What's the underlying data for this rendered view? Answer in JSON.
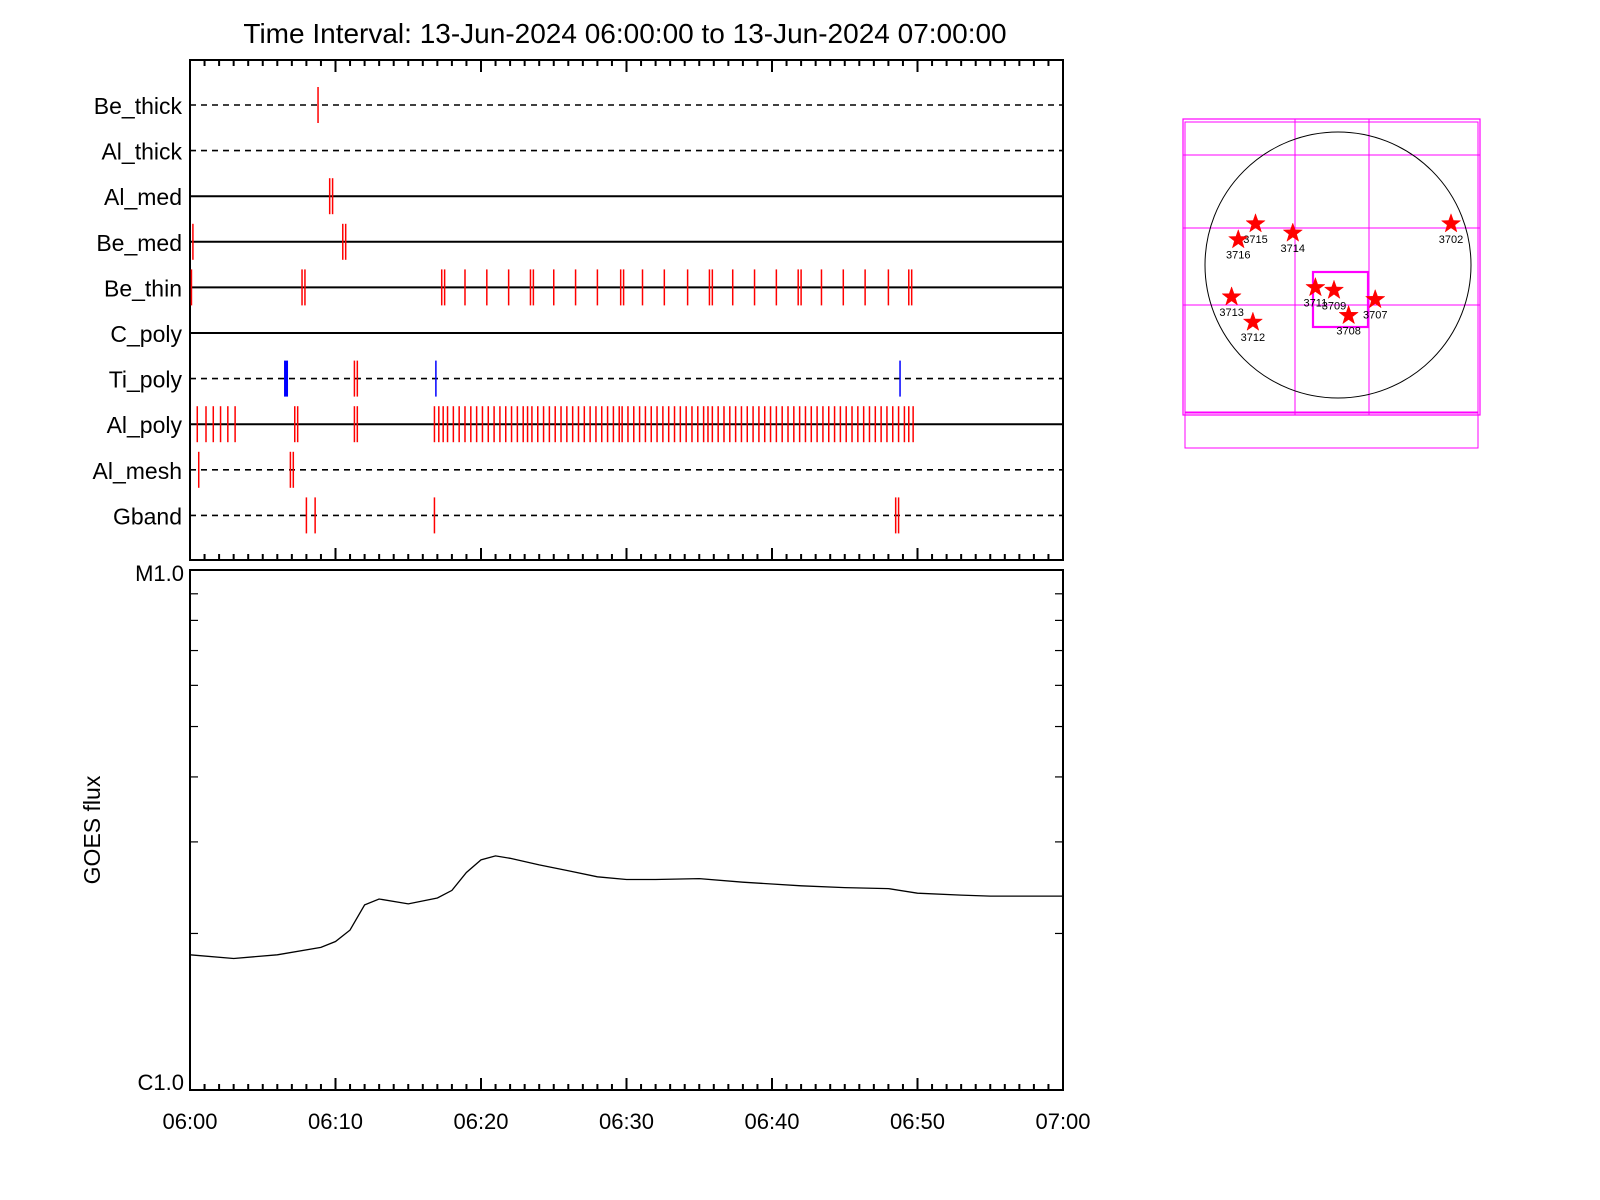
{
  "chart_data": [
    {
      "type": "event-timeline",
      "title": "Time Interval: 13-Jun-2024 06:00:00 to 13-Jun-2024 07:00:00",
      "x_range": [
        "06:00",
        "07:00"
      ],
      "rows": [
        {
          "name": "Be_thick",
          "style": "dashed",
          "events": [
            {
              "t": "06:08.8",
              "color": "red"
            }
          ]
        },
        {
          "name": "Al_thick",
          "style": "dashed",
          "events": []
        },
        {
          "name": "Al_med",
          "style": "solid",
          "events": [
            {
              "t": "06:09.6",
              "color": "red"
            },
            {
              "t": "06:09.8",
              "color": "red"
            }
          ]
        },
        {
          "name": "Be_med",
          "style": "solid",
          "events": [
            {
              "t": "06:00.2",
              "color": "red"
            },
            {
              "t": "06:10.5",
              "color": "red"
            },
            {
              "t": "06:10.7",
              "color": "red"
            }
          ]
        },
        {
          "name": "Be_thin",
          "style": "solid",
          "events": [
            {
              "t": "06:00.1",
              "color": "red"
            },
            {
              "t": "06:07.7",
              "color": "red"
            },
            {
              "t": "06:07.9",
              "color": "red"
            },
            {
              "t": "06:17.3",
              "color": "red"
            },
            {
              "t": "06:17.5",
              "color": "red"
            },
            {
              "t": "06:18.9",
              "color": "red"
            },
            {
              "t": "06:20.4",
              "color": "red"
            },
            {
              "t": "06:21.9",
              "color": "red"
            },
            {
              "t": "06:23.4",
              "color": "red"
            },
            {
              "t": "06:23.6",
              "color": "red"
            },
            {
              "t": "06:25.0",
              "color": "red"
            },
            {
              "t": "06:26.5",
              "color": "red"
            },
            {
              "t": "06:28.0",
              "color": "red"
            },
            {
              "t": "06:29.6",
              "color": "red"
            },
            {
              "t": "06:29.8",
              "color": "red"
            },
            {
              "t": "06:31.1",
              "color": "red"
            },
            {
              "t": "06:32.6",
              "color": "red"
            },
            {
              "t": "06:34.2",
              "color": "red"
            },
            {
              "t": "06:35.7",
              "color": "red"
            },
            {
              "t": "06:35.9",
              "color": "red"
            },
            {
              "t": "06:37.3",
              "color": "red"
            },
            {
              "t": "06:38.8",
              "color": "red"
            },
            {
              "t": "06:40.3",
              "color": "red"
            },
            {
              "t": "06:41.8",
              "color": "red"
            },
            {
              "t": "06:42.0",
              "color": "red"
            },
            {
              "t": "06:43.4",
              "color": "red"
            },
            {
              "t": "06:44.9",
              "color": "red"
            },
            {
              "t": "06:46.4",
              "color": "red"
            },
            {
              "t": "06:48.0",
              "color": "red"
            },
            {
              "t": "06:49.4",
              "color": "red"
            },
            {
              "t": "06:49.6",
              "color": "red"
            }
          ]
        },
        {
          "name": "C_poly",
          "style": "solid",
          "events": []
        },
        {
          "name": "Ti_poly",
          "style": "dashed",
          "events": [
            {
              "t": "06:06.6",
              "color": "blue",
              "bold": true
            },
            {
              "t": "06:11.3",
              "color": "red"
            },
            {
              "t": "06:11.5",
              "color": "red"
            },
            {
              "t": "06:16.9",
              "color": "blue"
            },
            {
              "t": "06:48.8",
              "color": "blue"
            }
          ]
        },
        {
          "name": "Al_poly",
          "style": "solid",
          "events": [
            {
              "t": "06:00.5",
              "color": "red"
            },
            {
              "t": "06:01.1",
              "color": "red"
            },
            {
              "t": "06:01.6",
              "color": "red"
            },
            {
              "t": "06:02.1",
              "color": "red"
            },
            {
              "t": "06:02.6",
              "color": "red"
            },
            {
              "t": "06:03.1",
              "color": "red"
            },
            {
              "t": "06:07.2",
              "color": "red"
            },
            {
              "t": "06:07.4",
              "color": "red"
            },
            {
              "t": "06:11.3",
              "color": "red"
            },
            {
              "t": "06:11.5",
              "color": "red"
            },
            {
              "t": "06:16.8",
              "color": "red"
            },
            {
              "t": "06:17.1",
              "color": "red"
            },
            {
              "t": "06:17.4",
              "color": "red"
            },
            {
              "t": "06:17.7",
              "color": "red"
            },
            {
              "t": "06:18.1",
              "color": "red"
            },
            {
              "t": "06:18.5",
              "color": "red"
            },
            {
              "t": "06:18.9",
              "color": "red"
            },
            {
              "t": "06:19.3",
              "color": "red"
            },
            {
              "t": "06:19.7",
              "color": "red"
            },
            {
              "t": "06:20.1",
              "color": "red"
            },
            {
              "t": "06:20.5",
              "color": "red"
            },
            {
              "t": "06:20.9",
              "color": "red"
            },
            {
              "t": "06:21.3",
              "color": "red"
            },
            {
              "t": "06:21.7",
              "color": "red"
            },
            {
              "t": "06:22.1",
              "color": "red"
            },
            {
              "t": "06:22.5",
              "color": "red"
            },
            {
              "t": "06:22.9",
              "color": "red"
            },
            {
              "t": "06:23.2",
              "color": "red"
            },
            {
              "t": "06:23.5",
              "color": "red"
            },
            {
              "t": "06:23.9",
              "color": "red"
            },
            {
              "t": "06:24.3",
              "color": "red"
            },
            {
              "t": "06:24.7",
              "color": "red"
            },
            {
              "t": "06:25.1",
              "color": "red"
            },
            {
              "t": "06:25.5",
              "color": "red"
            },
            {
              "t": "06:25.9",
              "color": "red"
            },
            {
              "t": "06:26.3",
              "color": "red"
            },
            {
              "t": "06:26.7",
              "color": "red"
            },
            {
              "t": "06:27.1",
              "color": "red"
            },
            {
              "t": "06:27.5",
              "color": "red"
            },
            {
              "t": "06:27.9",
              "color": "red"
            },
            {
              "t": "06:28.3",
              "color": "red"
            },
            {
              "t": "06:28.7",
              "color": "red"
            },
            {
              "t": "06:29.1",
              "color": "red"
            },
            {
              "t": "06:29.5",
              "color": "red"
            },
            {
              "t": "06:29.7",
              "color": "red"
            },
            {
              "t": "06:30.1",
              "color": "red"
            },
            {
              "t": "06:30.5",
              "color": "red"
            },
            {
              "t": "06:30.9",
              "color": "red"
            },
            {
              "t": "06:31.3",
              "color": "red"
            },
            {
              "t": "06:31.7",
              "color": "red"
            },
            {
              "t": "06:32.1",
              "color": "red"
            },
            {
              "t": "06:32.5",
              "color": "red"
            },
            {
              "t": "06:32.9",
              "color": "red"
            },
            {
              "t": "06:33.3",
              "color": "red"
            },
            {
              "t": "06:33.7",
              "color": "red"
            },
            {
              "t": "06:34.1",
              "color": "red"
            },
            {
              "t": "06:34.5",
              "color": "red"
            },
            {
              "t": "06:34.9",
              "color": "red"
            },
            {
              "t": "06:35.3",
              "color": "red"
            },
            {
              "t": "06:35.6",
              "color": "red"
            },
            {
              "t": "06:35.9",
              "color": "red"
            },
            {
              "t": "06:36.3",
              "color": "red"
            },
            {
              "t": "06:36.7",
              "color": "red"
            },
            {
              "t": "06:37.1",
              "color": "red"
            },
            {
              "t": "06:37.5",
              "color": "red"
            },
            {
              "t": "06:37.9",
              "color": "red"
            },
            {
              "t": "06:38.3",
              "color": "red"
            },
            {
              "t": "06:38.7",
              "color": "red"
            },
            {
              "t": "06:39.1",
              "color": "red"
            },
            {
              "t": "06:39.5",
              "color": "red"
            },
            {
              "t": "06:39.9",
              "color": "red"
            },
            {
              "t": "06:40.3",
              "color": "red"
            },
            {
              "t": "06:40.7",
              "color": "red"
            },
            {
              "t": "06:41.1",
              "color": "red"
            },
            {
              "t": "06:41.5",
              "color": "red"
            },
            {
              "t": "06:41.9",
              "color": "red"
            },
            {
              "t": "06:42.3",
              "color": "red"
            },
            {
              "t": "06:42.7",
              "color": "red"
            },
            {
              "t": "06:43.1",
              "color": "red"
            },
            {
              "t": "06:43.5",
              "color": "red"
            },
            {
              "t": "06:43.9",
              "color": "red"
            },
            {
              "t": "06:44.3",
              "color": "red"
            },
            {
              "t": "06:44.7",
              "color": "red"
            },
            {
              "t": "06:45.1",
              "color": "red"
            },
            {
              "t": "06:45.5",
              "color": "red"
            },
            {
              "t": "06:45.9",
              "color": "red"
            },
            {
              "t": "06:46.3",
              "color": "red"
            },
            {
              "t": "06:46.7",
              "color": "red"
            },
            {
              "t": "06:47.1",
              "color": "red"
            },
            {
              "t": "06:47.5",
              "color": "red"
            },
            {
              "t": "06:47.9",
              "color": "red"
            },
            {
              "t": "06:48.3",
              "color": "red"
            },
            {
              "t": "06:48.7",
              "color": "red"
            },
            {
              "t": "06:49.1",
              "color": "red"
            },
            {
              "t": "06:49.4",
              "color": "red"
            },
            {
              "t": "06:49.7",
              "color": "red"
            }
          ]
        },
        {
          "name": "Al_mesh",
          "style": "dashed",
          "events": [
            {
              "t": "06:00.6",
              "color": "red"
            },
            {
              "t": "06:06.9",
              "color": "red"
            },
            {
              "t": "06:07.1",
              "color": "red"
            }
          ]
        },
        {
          "name": "Gband",
          "style": "dashed",
          "events": [
            {
              "t": "06:08.0",
              "color": "red"
            },
            {
              "t": "06:08.6",
              "color": "red"
            },
            {
              "t": "06:16.8",
              "color": "red"
            },
            {
              "t": "06:48.5",
              "color": "red"
            },
            {
              "t": "06:48.7",
              "color": "red"
            }
          ]
        }
      ]
    },
    {
      "type": "line",
      "ylabel": "GOES flux",
      "y_scale": "log",
      "y_tick_labels": [
        "M1.0",
        "C1.0"
      ],
      "ylim": [
        1e-06,
        1e-05
      ],
      "x_tick_labels": [
        "06:00",
        "06:10",
        "06:20",
        "06:30",
        "06:40",
        "06:50",
        "07:00"
      ],
      "series": [
        {
          "x": [
            "06:00",
            "06:03",
            "06:06",
            "06:09",
            "06:10",
            "06:11",
            "06:12",
            "06:13",
            "06:15",
            "06:17",
            "06:18",
            "06:19",
            "06:20",
            "06:21",
            "06:22",
            "06:24",
            "06:26",
            "06:28",
            "06:30",
            "06:32",
            "06:35",
            "06:38",
            "06:40",
            "06:42",
            "06:45",
            "06:48",
            "06:50",
            "06:53",
            "06:55",
            "06:58",
            "07:00"
          ],
          "y": [
            1.82e-06,
            1.79e-06,
            1.82e-06,
            1.88e-06,
            1.93e-06,
            2.03e-06,
            2.27e-06,
            2.33e-06,
            2.28e-06,
            2.34e-06,
            2.42e-06,
            2.62e-06,
            2.77e-06,
            2.82e-06,
            2.79e-06,
            2.71e-06,
            2.64e-06,
            2.57e-06,
            2.54e-06,
            2.54e-06,
            2.55e-06,
            2.51e-06,
            2.49e-06,
            2.47e-06,
            2.45e-06,
            2.44e-06,
            2.39e-06,
            2.37e-06,
            2.36e-06,
            2.36e-06,
            2.36e-06
          ]
        }
      ]
    },
    {
      "type": "scatter",
      "series": [
        {
          "points": [
            {
              "label": "3715",
              "x": -0.62,
              "y": 0.31
            },
            {
              "label": "3716",
              "x": -0.75,
              "y": 0.19
            },
            {
              "label": "3714",
              "x": -0.34,
              "y": 0.24
            },
            {
              "label": "3702",
              "x": 0.85,
              "y": 0.31
            },
            {
              "label": "3711",
              "x": -0.17,
              "y": -0.17
            },
            {
              "label": "3709",
              "x": -0.03,
              "y": -0.19
            },
            {
              "label": "3708",
              "x": 0.08,
              "y": -0.38
            },
            {
              "label": "3707",
              "x": 0.28,
              "y": -0.26
            },
            {
              "label": "3713",
              "x": -0.8,
              "y": -0.24
            },
            {
              "label": "3712",
              "x": -0.64,
              "y": -0.43
            }
          ]
        }
      ],
      "colors": {
        "frame": "#ff00ff",
        "marker": "#ff0000",
        "disk": "#000000"
      }
    }
  ],
  "colors": {
    "event_red": "#ff0000",
    "event_blue": "#0000ff",
    "axis": "#000000",
    "frame": "#ff00ff"
  }
}
